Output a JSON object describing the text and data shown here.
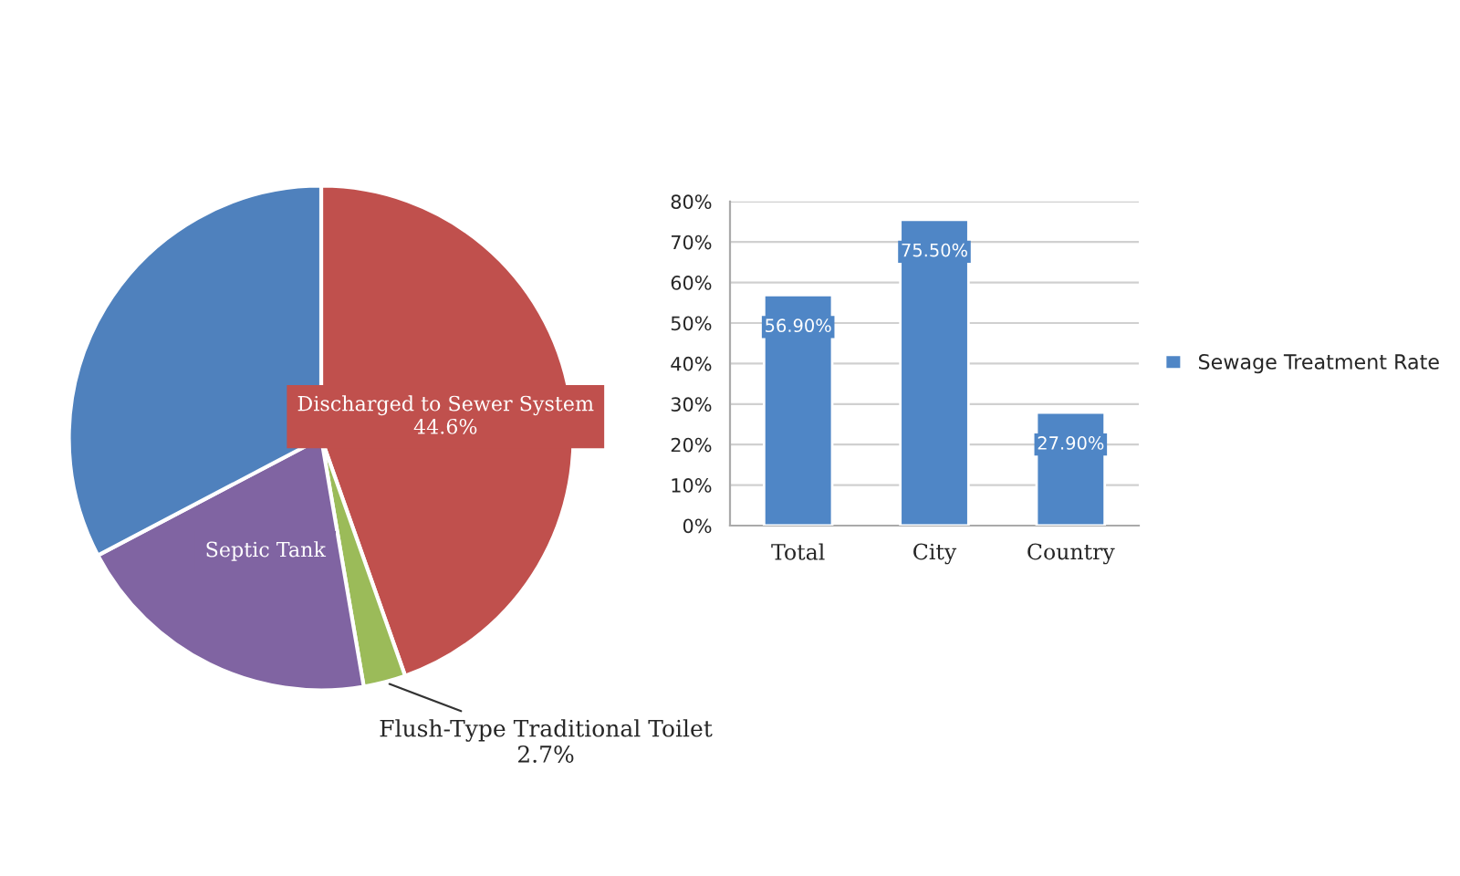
{
  "chart_data": [
    {
      "type": "pie",
      "categories": [
        "Discharged to Sewer System",
        "Flush-Type Traditional Toilet",
        "Septic Tank",
        null
      ],
      "values": [
        44.6,
        2.7,
        20.0,
        32.7
      ],
      "value_labels": [
        "44.6%",
        "2.7%",
        null,
        null
      ],
      "colors": [
        "#c0504d",
        "#9bbb59",
        "#8064a2",
        "#4f81bd"
      ]
    },
    {
      "type": "bar",
      "categories": [
        "Total",
        "City",
        "Country"
      ],
      "series": [
        {
          "name": "Sewage Treatment Rate",
          "color": "#4f86c6",
          "values": [
            56.9,
            75.5,
            27.9
          ]
        }
      ],
      "value_labels": [
        "56.90%",
        "75.50%",
        "27.90%"
      ],
      "ylim": [
        0,
        80
      ],
      "yticks": [
        {
          "value": 0,
          "label": "0%"
        },
        {
          "value": 10,
          "label": "10%"
        },
        {
          "value": 20,
          "label": "20%"
        },
        {
          "value": 30,
          "label": "30%"
        },
        {
          "value": 40,
          "label": "40%"
        },
        {
          "value": 50,
          "label": "50%"
        },
        {
          "value": 60,
          "label": "60%"
        },
        {
          "value": 70,
          "label": "70%"
        },
        {
          "value": 80,
          "label": "80%"
        }
      ],
      "grid": "y",
      "legend": "right"
    }
  ]
}
